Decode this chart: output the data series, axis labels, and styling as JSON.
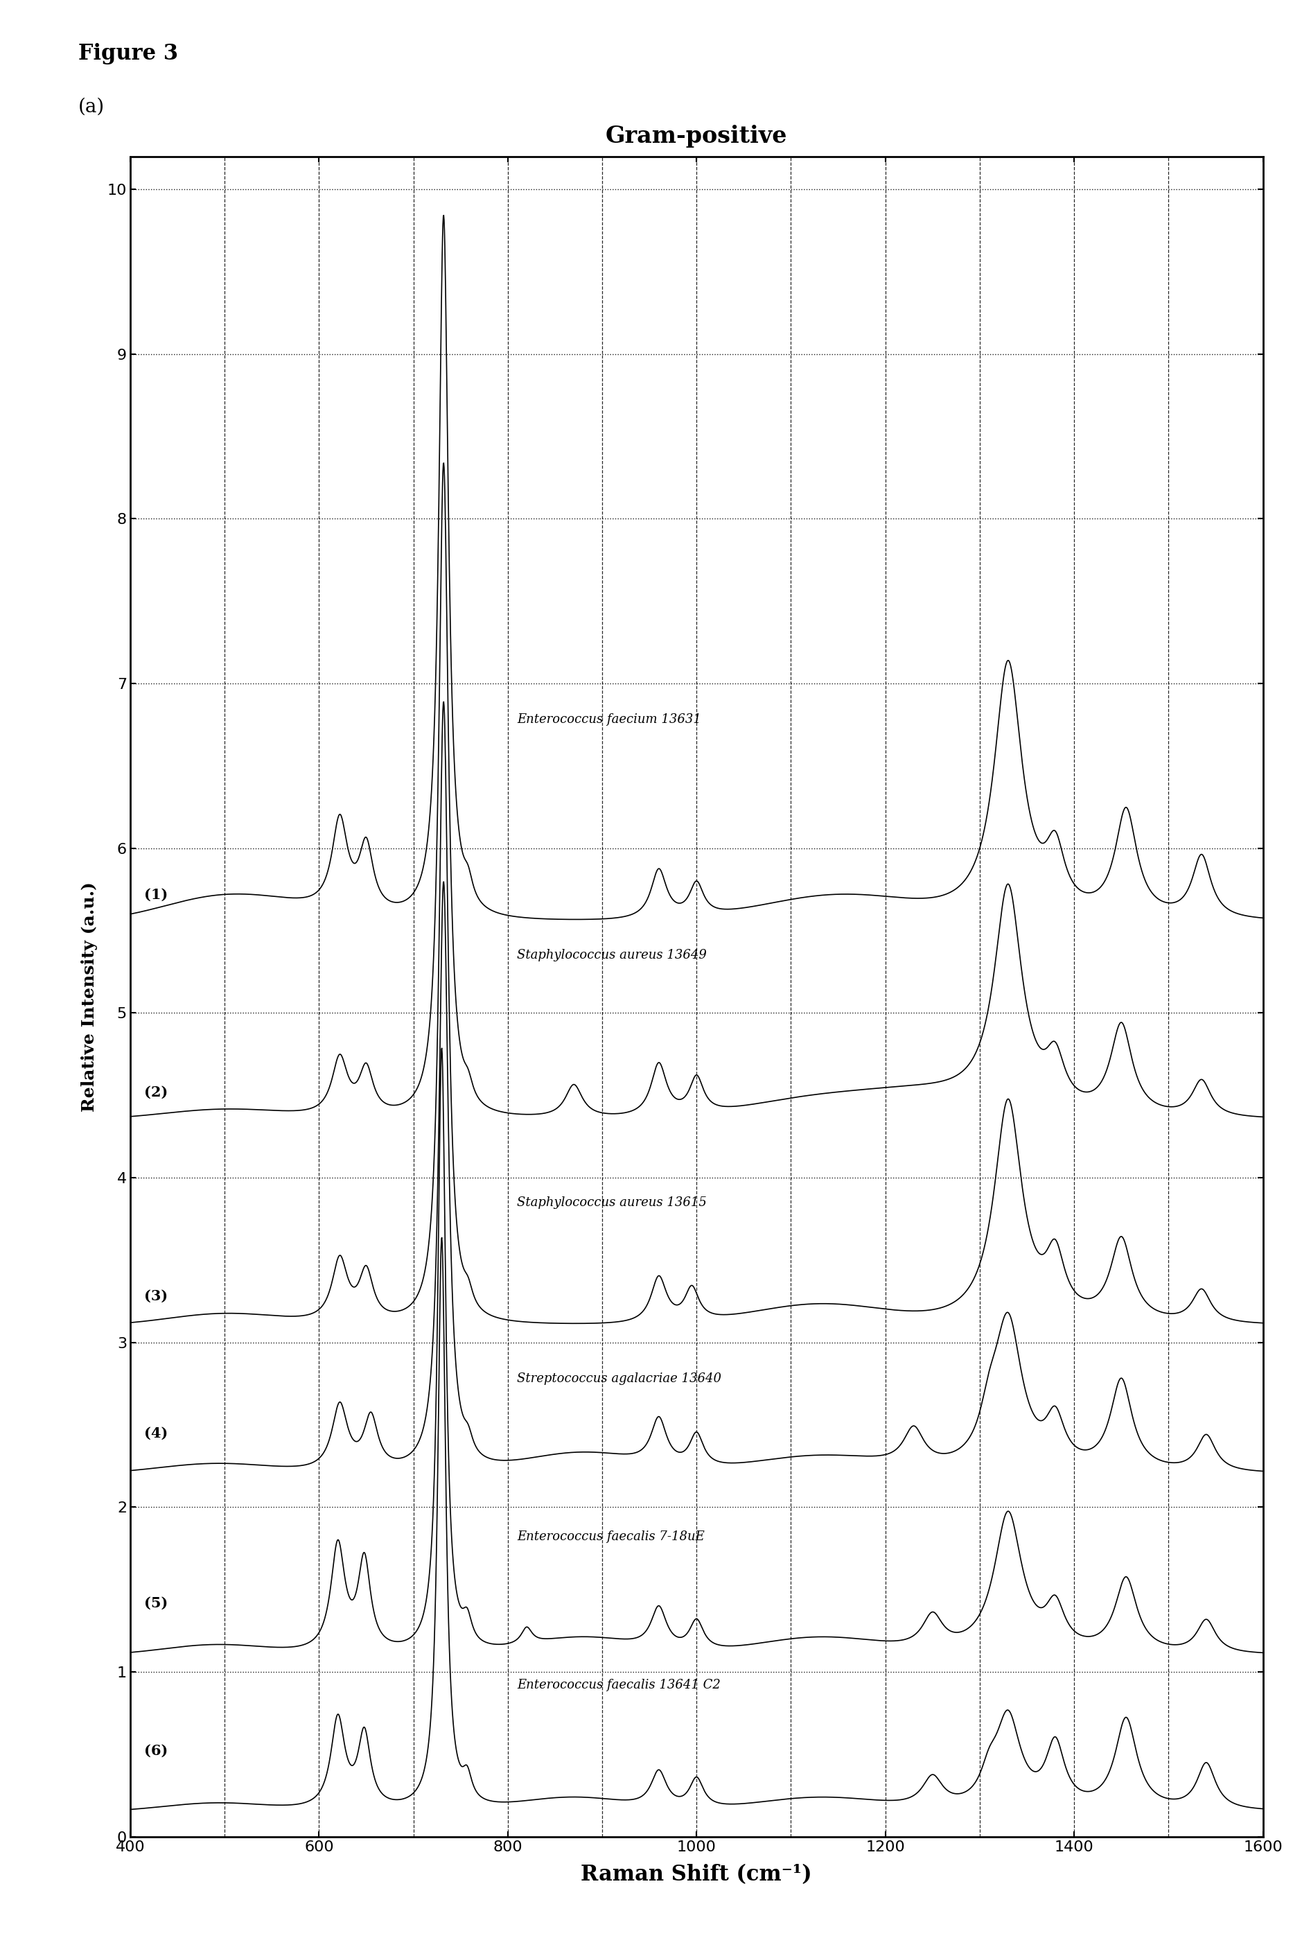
{
  "title": "Gram-positive",
  "xlabel": "Raman Shift (cm⁻¹)",
  "ylabel": "Relative Intensity (a.u.)",
  "xlim": [
    400,
    1600
  ],
  "ylim": [
    0,
    10.2
  ],
  "yticks": [
    0,
    1,
    2,
    3,
    4,
    5,
    6,
    7,
    8,
    9,
    10
  ],
  "xticks": [
    400,
    600,
    800,
    1000,
    1200,
    1400,
    1600
  ],
  "figure_title": "Figure 3",
  "panel_label": "(a)",
  "spectra_labels": [
    "Enterococcus faecium 13631",
    "Staphylococcus aureus 13649",
    "Staphylococcus aureus 13615",
    "Streptococcus agalacriae 13640",
    "Enterococcus faecalis 7-18uE",
    "Enterococcus faecalis 13641 C2"
  ],
  "spectra_numbers": [
    "(1)",
    "(2)",
    "(3)",
    "(4)",
    "(5)",
    "(6)"
  ],
  "offsets": [
    5.55,
    4.35,
    3.1,
    2.2,
    1.1,
    0.15
  ],
  "background_color": "#ffffff",
  "line_color": "#000000",
  "title_fontsize": 22,
  "label_fontsize": 18,
  "tick_fontsize": 16
}
